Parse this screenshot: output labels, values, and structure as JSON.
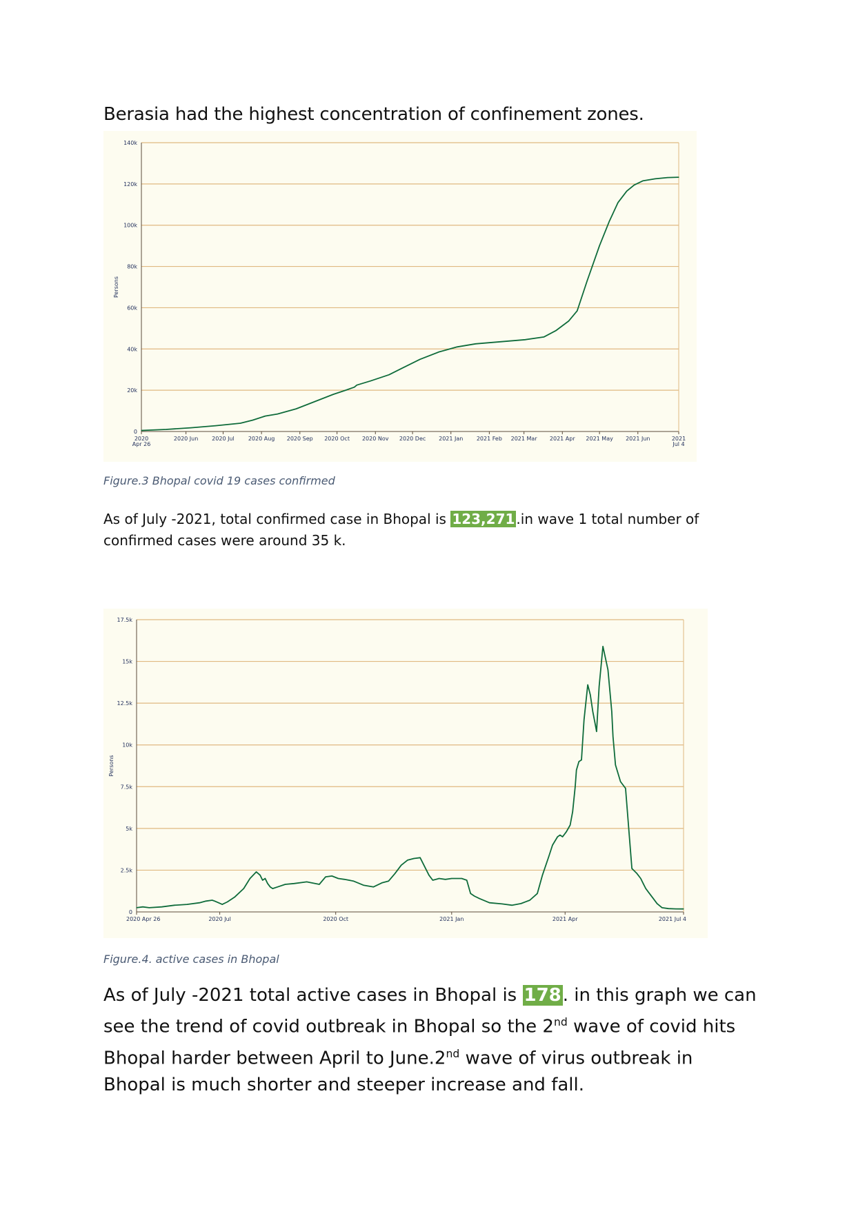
{
  "heading": "Berasia had the highest concentration of confinement zones.",
  "figure3_caption": "Figure.3 Bhopal covid 19 cases confirmed",
  "para1": {
    "before": " As of July -2021, total confirmed case in Bhopal is ",
    "highlight": "123,271",
    "after": ".in wave 1 total  number of confirmed cases were around 35 k."
  },
  "figure4_caption": "Figure.4. active cases in  Bhopal",
  "para2": {
    "p1": "As of July -2021 total active cases in Bhopal is ",
    "highlight": "178",
    "p2": ". in this graph we can see the trend of covid outbreak in Bhopal so the 2",
    "sup1": "nd",
    "p3": " wave of covid hits Bhopal harder between April to June.2",
    "sup2": "nd",
    "p4": " wave of virus outbreak in Bhopal is much shorter and steeper increase and fall."
  },
  "colors": {
    "line": "#0e6b3a",
    "grid": "#e0b880",
    "background": "#fdfcf0",
    "highlight": "#70ad47",
    "tick_text": "#1f2d5a"
  },
  "chart_data": [
    {
      "type": "line",
      "ylabel": "Persons",
      "ylim": [
        0,
        140000
      ],
      "y_ticks": [
        "0",
        "20k",
        "40k",
        "60k",
        "80k",
        "100k",
        "120k",
        "140k"
      ],
      "x_ticks": [
        {
          "t": 0,
          "label": "2020",
          "label2": "Apr 26"
        },
        {
          "t": 36,
          "label": "2020 Jun"
        },
        {
          "t": 66,
          "label": "2020 Jul"
        },
        {
          "t": 97,
          "label": "2020 Aug"
        },
        {
          "t": 128,
          "label": "2020 Sep"
        },
        {
          "t": 158,
          "label": "2020 Oct"
        },
        {
          "t": 189,
          "label": "2020 Nov"
        },
        {
          "t": 219,
          "label": "2020 Dec"
        },
        {
          "t": 250,
          "label": "2021 Jan"
        },
        {
          "t": 281,
          "label": "2021 Feb"
        },
        {
          "t": 309,
          "label": "2021 Mar"
        },
        {
          "t": 340,
          "label": "2021 Apr"
        },
        {
          "t": 370,
          "label": "2021 May"
        },
        {
          "t": 401,
          "label": "2021 Jun"
        },
        {
          "t": 434,
          "label": "2021",
          "label2": "Jul 4"
        }
      ],
      "series": [
        {
          "x": [
            0,
            20,
            40,
            60,
            80,
            90,
            100,
            110,
            125,
            140,
            155,
            165,
            172,
            174,
            185,
            200,
            210,
            225,
            240,
            255,
            270,
            290,
            310,
            325,
            335,
            345,
            352,
            360,
            370,
            378,
            385,
            392,
            398,
            405,
            415,
            425,
            434
          ],
          "y": [
            500,
            1000,
            1800,
            2800,
            4000,
            5500,
            7500,
            8500,
            11000,
            14500,
            18000,
            20000,
            21500,
            22500,
            24500,
            27500,
            30500,
            35000,
            38500,
            41000,
            42500,
            43500,
            44500,
            45800,
            49000,
            53500,
            58500,
            73000,
            90000,
            102000,
            111000,
            116500,
            119500,
            121500,
            122500,
            123100,
            123271
          ]
        }
      ]
    },
    {
      "type": "line",
      "ylabel": "Persons",
      "ylim": [
        0,
        17500
      ],
      "y_ticks": [
        "0",
        "2.5k",
        "5k",
        "7.5k",
        "10k",
        "12.5k",
        "15k",
        "17.5k"
      ],
      "x_ticks": [
        {
          "t": 0,
          "label": "2020 Apr 26"
        },
        {
          "t": 66,
          "label": "2020 Jul"
        },
        {
          "t": 158,
          "label": "2020 Oct"
        },
        {
          "t": 250,
          "label": "2021 Jan"
        },
        {
          "t": 340,
          "label": "2021 Apr"
        },
        {
          "t": 434,
          "label": "2021 Jul 4"
        }
      ],
      "series": [
        {
          "x": [
            0,
            5,
            10,
            20,
            30,
            40,
            50,
            55,
            60,
            62,
            65,
            68,
            72,
            78,
            85,
            90,
            95,
            98,
            100,
            102,
            104,
            106,
            108,
            112,
            118,
            125,
            135,
            145,
            150,
            155,
            160,
            165,
            172,
            180,
            188,
            195,
            200,
            205,
            210,
            215,
            220,
            225,
            232,
            235,
            240,
            245,
            250,
            258,
            262,
            265,
            268,
            272,
            280,
            290,
            298,
            305,
            312,
            318,
            322,
            327,
            330,
            334,
            336,
            338,
            341,
            344,
            346,
            348,
            349,
            351,
            353,
            355,
            358,
            360,
            362,
            364,
            365,
            367,
            370,
            374,
            377,
            378,
            380,
            384,
            388,
            393,
            397,
            400,
            402,
            404,
            406,
            410,
            413,
            417,
            422,
            428,
            434
          ],
          "y": [
            250,
            300,
            250,
            300,
            400,
            450,
            550,
            650,
            700,
            650,
            550,
            450,
            600,
            900,
            1400,
            2000,
            2400,
            2200,
            1900,
            2000,
            1700,
            1500,
            1400,
            1500,
            1650,
            1700,
            1800,
            1650,
            2100,
            2150,
            2000,
            1950,
            1850,
            1600,
            1500,
            1750,
            1850,
            2300,
            2800,
            3100,
            3200,
            3250,
            2200,
            1900,
            2000,
            1950,
            2000,
            2000,
            1900,
            1100,
            950,
            800,
            550,
            480,
            400,
            500,
            700,
            1100,
            2200,
            3300,
            4000,
            4500,
            4600,
            4500,
            4800,
            5200,
            6000,
            7500,
            8500,
            9000,
            9100,
            11500,
            13600,
            13000,
            12000,
            11200,
            10800,
            13500,
            15900,
            14500,
            12000,
            10500,
            8800,
            7800,
            7400,
            2600,
            2300,
            2000,
            1700,
            1400,
            1200,
            800,
            500,
            250,
            200,
            180,
            178
          ]
        }
      ]
    }
  ]
}
